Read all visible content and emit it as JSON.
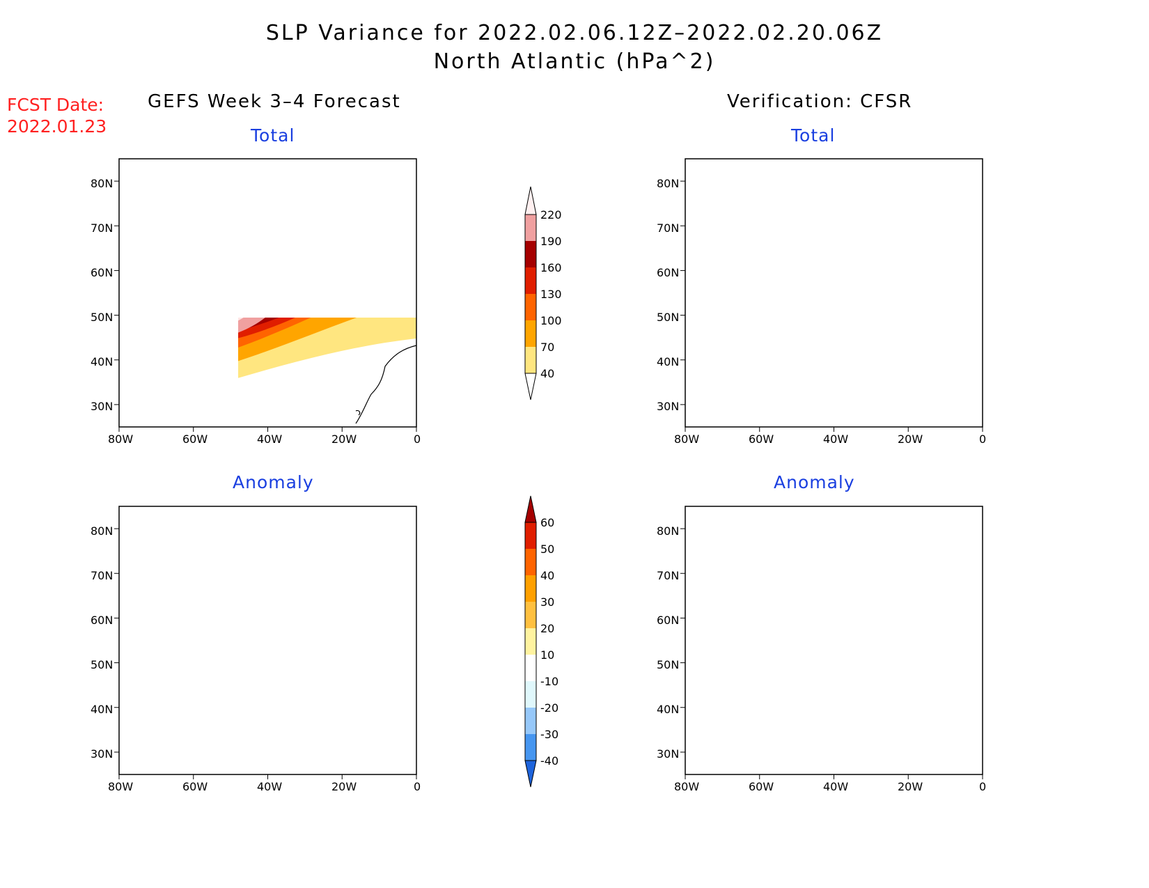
{
  "title": {
    "line1": "SLP Variance for 2022.02.06.12Z–2022.02.20.06Z",
    "line2": "North Atlantic (hPa^2)"
  },
  "fcst_date": {
    "label": "FCST Date:",
    "value": "2022.01.23"
  },
  "columns": {
    "left": "GEFS Week 3–4 Forecast",
    "right": "Verification: CFSR"
  },
  "panel_titles": {
    "total": "Total",
    "anomaly": "Anomaly"
  },
  "map_axes": {
    "lat_labels": [
      "80N",
      "70N",
      "60N",
      "50N",
      "40N",
      "30N"
    ],
    "lat_values": [
      80,
      70,
      60,
      50,
      40,
      30
    ],
    "lon_labels": [
      "80W",
      "60W",
      "40W",
      "20W",
      "0"
    ],
    "lon_values": [
      -80,
      -60,
      -40,
      -20,
      0
    ],
    "lat_range": [
      25,
      85
    ],
    "lon_range": [
      -80,
      0
    ]
  },
  "colorbars": {
    "total": {
      "levels": [
        "40",
        "70",
        "100",
        "130",
        "160",
        "190",
        "220"
      ],
      "colors": [
        "#ffe680",
        "#ffa500",
        "#ff6400",
        "#e01e00",
        "#a50000",
        "#f0a0a0",
        "#ffe6e6"
      ],
      "below_color": "#ffffff",
      "above_color": "#fff0f0"
    },
    "anomaly": {
      "levels": [
        "-40",
        "-30",
        "-20",
        "-10",
        "10",
        "20",
        "30",
        "40",
        "50",
        "60"
      ],
      "colors": [
        "#1e64dc",
        "#4696f0",
        "#96c8fa",
        "#e0f8fc",
        "#ffffff",
        "#fff3a0",
        "#ffc040",
        "#ffa000",
        "#ff6400",
        "#e01e00",
        "#a50000"
      ]
    }
  },
  "legend_colors": {
    "white": "#ffffff",
    "pale_pink": "#ffe6e6",
    "pink": "#f0a0a0",
    "dark_red": "#a50000",
    "red": "#e01e00",
    "red_orange": "#ff6400",
    "orange": "#ffa500",
    "yellow": "#ffe680",
    "light_yellow": "#fff3a0",
    "lt_orange": "#ffc040",
    "cyan_pale": "#e0f8fc",
    "light_blue": "#96c8fa",
    "mid_blue": "#4696f0",
    "blue": "#1e64dc"
  }
}
